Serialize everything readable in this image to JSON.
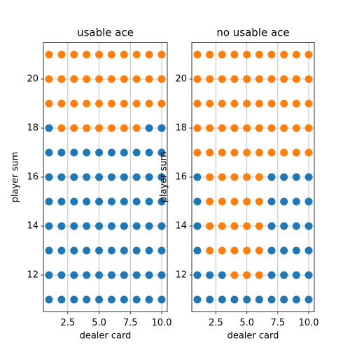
{
  "chart_data": [
    {
      "type": "scatter",
      "title": "usable ace",
      "xlabel": "dealer card",
      "ylabel": "player sum",
      "xlim": [
        0.55,
        10.45
      ],
      "xticks": [
        2.5,
        {
          "value": 5,
          "label": "5.0"
        },
        7.5,
        {
          "value": 10,
          "label": "10.0"
        }
      ],
      "ylim": [
        10.5,
        21.5
      ],
      "yticks": [
        12,
        14,
        16,
        18,
        20
      ],
      "grid": true,
      "series": [
        {
          "color": "#1f77b4",
          "x": [
            1,
            2,
            3,
            4,
            5,
            6,
            7,
            8,
            9,
            10,
            1,
            2,
            3,
            4,
            5,
            6,
            7,
            8,
            9,
            10,
            1,
            2,
            3,
            4,
            5,
            6,
            7,
            8,
            9,
            10,
            1,
            2,
            3,
            4,
            5,
            6,
            7,
            8,
            9,
            10,
            1,
            2,
            3,
            4,
            5,
            6,
            7,
            8,
            9,
            10,
            1,
            2,
            3,
            4,
            5,
            6,
            7,
            8,
            9,
            10,
            1,
            2,
            3,
            4,
            5,
            6,
            7,
            8,
            9,
            10,
            1,
            9,
            10
          ],
          "y": [
            11,
            11,
            11,
            11,
            11,
            11,
            11,
            11,
            11,
            11,
            12,
            12,
            12,
            12,
            12,
            12,
            12,
            12,
            12,
            12,
            13,
            13,
            13,
            13,
            13,
            13,
            13,
            13,
            13,
            13,
            14,
            14,
            14,
            14,
            14,
            14,
            14,
            14,
            14,
            14,
            15,
            15,
            15,
            15,
            15,
            15,
            15,
            15,
            15,
            15,
            16,
            16,
            16,
            16,
            16,
            16,
            16,
            16,
            16,
            16,
            17,
            17,
            17,
            17,
            17,
            17,
            17,
            17,
            17,
            17,
            18,
            18,
            18
          ]
        },
        {
          "color": "#ff7f0e",
          "x": [
            2,
            3,
            4,
            5,
            6,
            7,
            8,
            1,
            2,
            3,
            4,
            5,
            6,
            7,
            8,
            9,
            10,
            1,
            2,
            3,
            4,
            5,
            6,
            7,
            8,
            9,
            10,
            1,
            2,
            3,
            4,
            5,
            6,
            7,
            8,
            9,
            10
          ],
          "y": [
            18,
            18,
            18,
            18,
            18,
            18,
            18,
            19,
            19,
            19,
            19,
            19,
            19,
            19,
            19,
            19,
            19,
            20,
            20,
            20,
            20,
            20,
            20,
            20,
            20,
            20,
            20,
            21,
            21,
            21,
            21,
            21,
            21,
            21,
            21,
            21,
            21
          ]
        }
      ]
    },
    {
      "type": "scatter",
      "title": "no usable ace",
      "xlabel": "dealer card",
      "ylabel": "player sum",
      "xlim": [
        0.55,
        10.45
      ],
      "xticks": [
        2.5,
        {
          "value": 5,
          "label": "5.0"
        },
        7.5,
        {
          "value": 10,
          "label": "10.0"
        }
      ],
      "ylim": [
        10.5,
        21.5
      ],
      "yticks": [
        12,
        14,
        16,
        18,
        20
      ],
      "grid": true,
      "series": [
        {
          "color": "#1f77b4",
          "x": [
            1,
            2,
            3,
            4,
            5,
            6,
            7,
            8,
            9,
            10,
            1,
            2,
            3,
            7,
            8,
            9,
            10,
            1,
            7,
            8,
            9,
            10,
            1,
            7,
            8,
            9,
            10,
            1,
            7,
            8,
            9,
            10,
            1,
            7,
            8,
            9,
            10
          ],
          "y": [
            11,
            11,
            11,
            11,
            11,
            11,
            11,
            11,
            11,
            11,
            12,
            12,
            12,
            12,
            12,
            12,
            12,
            13,
            13,
            13,
            13,
            13,
            14,
            14,
            14,
            14,
            14,
            15,
            15,
            15,
            15,
            15,
            16,
            16,
            16,
            16,
            16
          ]
        },
        {
          "color": "#ff7f0e",
          "x": [
            4,
            5,
            6,
            2,
            3,
            4,
            5,
            6,
            2,
            3,
            4,
            5,
            6,
            2,
            3,
            4,
            5,
            6,
            2,
            3,
            4,
            5,
            6,
            1,
            2,
            3,
            4,
            5,
            6,
            7,
            8,
            9,
            10,
            1,
            2,
            3,
            4,
            5,
            6,
            7,
            8,
            9,
            10,
            1,
            2,
            3,
            4,
            5,
            6,
            7,
            8,
            9,
            10,
            1,
            2,
            3,
            4,
            5,
            6,
            7,
            8,
            9,
            10,
            1,
            2,
            3,
            4,
            5,
            6,
            7,
            8,
            9,
            10
          ],
          "y": [
            12,
            12,
            12,
            13,
            13,
            13,
            13,
            13,
            14,
            14,
            14,
            14,
            14,
            15,
            15,
            15,
            15,
            15,
            16,
            16,
            16,
            16,
            16,
            17,
            17,
            17,
            17,
            17,
            17,
            17,
            17,
            17,
            17,
            18,
            18,
            18,
            18,
            18,
            18,
            18,
            18,
            18,
            18,
            19,
            19,
            19,
            19,
            19,
            19,
            19,
            19,
            19,
            19,
            20,
            20,
            20,
            20,
            20,
            20,
            20,
            20,
            20,
            20,
            21,
            21,
            21,
            21,
            21,
            21,
            21,
            21,
            21,
            21
          ]
        }
      ]
    }
  ]
}
